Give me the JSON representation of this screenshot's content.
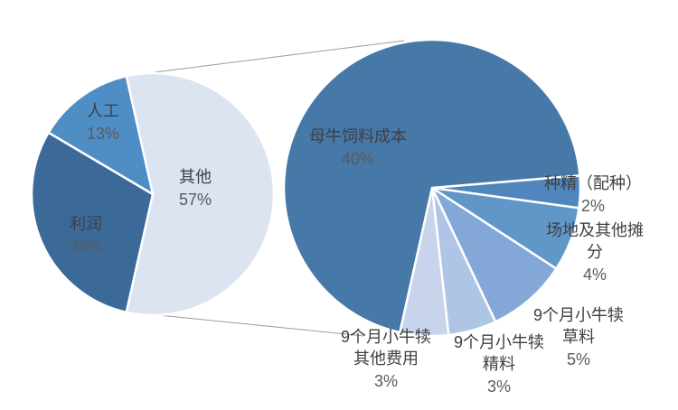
{
  "chart_data": {
    "type": "pie",
    "variant": "pie-of-pie",
    "title": "",
    "legend": "none",
    "connector_color": "#9b9b9b",
    "primary": {
      "name": "main-pie",
      "start_angle_deg": -12.6,
      "total": 100,
      "slices": [
        {
          "label": "其他",
          "pct": "57%",
          "value": 57,
          "color": "#DCE3F1"
        },
        {
          "label": "利润",
          "pct": "30%",
          "value": 30,
          "color": "#3B6A98"
        },
        {
          "label": "人工",
          "pct": "13%",
          "value": 13,
          "color": "#4F8DC5"
        }
      ]
    },
    "secondary": {
      "name": "breakdown-pie",
      "start_angle_deg": 85.2,
      "total": 57,
      "slices": [
        {
          "label": "种精（配种）",
          "pct": "2%",
          "value": 2,
          "color": "#4F86BC"
        },
        {
          "label": "场地及其他摊分",
          "pct": "4%",
          "value": 4,
          "color": "#6096C8"
        },
        {
          "label": "9个月小牛犊草料",
          "pct": "5%",
          "value": 5,
          "color": "#83A7D7"
        },
        {
          "label": "9个月小牛犊精料",
          "pct": "3%",
          "value": 3,
          "color": "#AFC5E5"
        },
        {
          "label": "9个月小牛犊其他费用",
          "pct": "3%",
          "value": 3,
          "color": "#C7D4EB"
        },
        {
          "label": "母牛饲料成本",
          "pct": "40%",
          "value": 40,
          "color": "#4678A8"
        }
      ]
    }
  }
}
